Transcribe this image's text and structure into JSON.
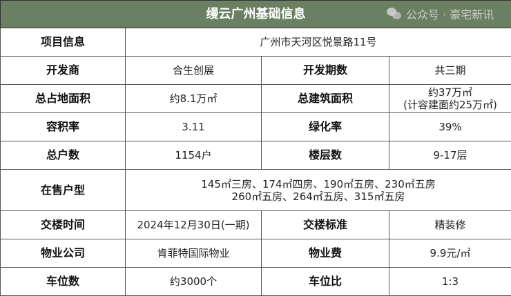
{
  "title": "缦云广州基础信息",
  "rows": [
    {
      "label": "项目信息",
      "value": "广州市天河区悦景路11号"
    },
    {
      "label": "开发商",
      "value": "合生创展",
      "label2": "开发期数",
      "value2": "共三期"
    },
    {
      "label": "总占地面积",
      "value": "约8.1万㎡",
      "label2": "总建筑面积",
      "value2_line1": "约37万㎡",
      "value2_line2": "(计容建面约25万㎡)"
    },
    {
      "label": "容积率",
      "value": "3.11",
      "label2": "绿化率",
      "value2": "39%"
    },
    {
      "label": "总户数",
      "value": "1154户",
      "label2": "楼层数",
      "value2": "9-17层"
    },
    {
      "label": "在售户型",
      "value_line1": "145㎡三房、174㎡四房、190㎡五房、230㎡五房",
      "value_line2": "260㎡五房、264㎡五房、315㎡五房"
    },
    {
      "label": "交楼时间",
      "value": "2024年12月30日(一期)",
      "label2": "交楼标准",
      "value2": "精装修"
    },
    {
      "label": "物业公司",
      "value": "肯菲特国际物业",
      "label2": "物业费",
      "value2": "9.9元/㎡"
    },
    {
      "label": "车位数",
      "value": "约3000个",
      "label2": "车位比",
      "value2": "1:3"
    }
  ],
  "watermark": {
    "icon": "wechat-icon",
    "text": "公众号 · 豪宅新讯"
  },
  "colors": {
    "header_bg": "#6b7f62",
    "header_text": "#ffffff"
  }
}
